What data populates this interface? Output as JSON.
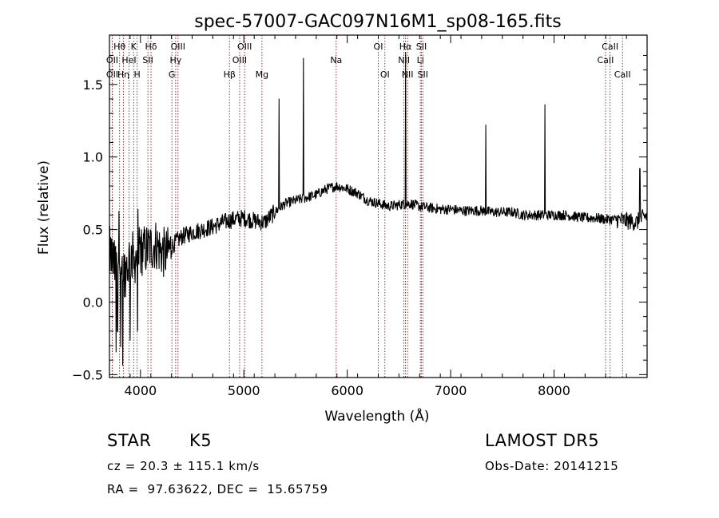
{
  "chart_data": {
    "type": "line",
    "title": "spec-57007-GAC097N16M1_sp08-165.fits",
    "xlabel": "Wavelength (Å)",
    "ylabel": "Flux (relative)",
    "xlim": [
      3700,
      8900
    ],
    "ylim": [
      -0.52,
      1.84
    ],
    "xticks": [
      4000,
      5000,
      6000,
      7000,
      8000
    ],
    "xtick_labels": [
      "4000",
      "5000",
      "6000",
      "7000",
      "8000"
    ],
    "yticks": [
      -0.5,
      0.0,
      0.5,
      1.0,
      1.5
    ],
    "ytick_labels": [
      "−0.5",
      "0.0",
      "0.5",
      "1.0",
      "1.5"
    ],
    "grid": false,
    "series": [
      {
        "x": [
          3700,
          3750,
          3800,
          3850,
          3900,
          3950,
          4000,
          4050,
          4100,
          4150,
          4200,
          4250,
          4300,
          4350,
          4400,
          4500,
          4600,
          4700,
          4800,
          4900,
          5000,
          5100,
          5200,
          5300,
          5400,
          5500,
          5600,
          5700,
          5800,
          5900,
          6000,
          6100,
          6200,
          6300,
          6400,
          6500,
          6600,
          6700,
          6800,
          6900,
          7000,
          7100,
          7200,
          7300,
          7400,
          7500,
          7600,
          7700,
          7800,
          7900,
          8000,
          8100,
          8200,
          8300,
          8400,
          8500,
          8600,
          8700,
          8800,
          8900
        ],
        "y": [
          0.35,
          0.25,
          0.3,
          0.2,
          0.32,
          0.3,
          0.35,
          0.36,
          0.38,
          0.4,
          0.35,
          0.33,
          0.38,
          0.42,
          0.45,
          0.48,
          0.5,
          0.52,
          0.55,
          0.57,
          0.58,
          0.56,
          0.55,
          0.62,
          0.68,
          0.7,
          0.72,
          0.74,
          0.78,
          0.8,
          0.78,
          0.75,
          0.7,
          0.68,
          0.66,
          0.67,
          0.68,
          0.66,
          0.65,
          0.64,
          0.64,
          0.63,
          0.63,
          0.63,
          0.62,
          0.62,
          0.62,
          0.6,
          0.6,
          0.6,
          0.6,
          0.6,
          0.59,
          0.58,
          0.58,
          0.57,
          0.57,
          0.56,
          0.55,
          0.6
        ]
      }
    ],
    "emission_peaks": [
      {
        "x": 5340,
        "y": 1.4
      },
      {
        "x": 5577,
        "y": 1.68
      },
      {
        "x": 6563,
        "y": 1.72
      },
      {
        "x": 7340,
        "y": 1.22
      },
      {
        "x": 7913,
        "y": 1.36
      },
      {
        "x": 8830,
        "y": 0.92
      }
    ],
    "line_markers": [
      {
        "x": 3798,
        "label": "Hθ",
        "row": 0
      },
      {
        "x": 3727,
        "label": "OII",
        "row": 1
      },
      {
        "x": 3727,
        "label": "OII",
        "row": 2
      },
      {
        "x": 3835,
        "label": "Hη",
        "row": 2
      },
      {
        "x": 3889,
        "label": "HeI",
        "row": 1
      },
      {
        "x": 3934,
        "label": "K",
        "row": 0
      },
      {
        "x": 3968,
        "label": "H",
        "row": 2
      },
      {
        "x": 4102,
        "label": "Hδ",
        "row": 0
      },
      {
        "x": 4072,
        "label": "SII",
        "row": 1
      },
      {
        "x": 4340,
        "label": "Hγ",
        "row": 1
      },
      {
        "x": 4304,
        "label": "G",
        "row": 2
      },
      {
        "x": 4363,
        "label": "OIII",
        "row": 0
      },
      {
        "x": 4861,
        "label": "Hβ",
        "row": 2
      },
      {
        "x": 4959,
        "label": "OIII",
        "row": 1
      },
      {
        "x": 5007,
        "label": "OIII",
        "row": 0
      },
      {
        "x": 5175,
        "label": "Mg",
        "row": 2
      },
      {
        "x": 5893,
        "label": "Na",
        "row": 1
      },
      {
        "x": 6300,
        "label": "OI",
        "row": 0
      },
      {
        "x": 6364,
        "label": "OI",
        "row": 2
      },
      {
        "x": 6548,
        "label": "NII",
        "row": 1
      },
      {
        "x": 6563,
        "label": "Hα",
        "row": 0
      },
      {
        "x": 6583,
        "label": "NII",
        "row": 2
      },
      {
        "x": 6707,
        "label": "Li",
        "row": 1
      },
      {
        "x": 6717,
        "label": "SII",
        "row": 0
      },
      {
        "x": 6731,
        "label": "SII",
        "row": 2
      },
      {
        "x": 8498,
        "label": "CaII",
        "row": 1
      },
      {
        "x": 8542,
        "label": "CaII",
        "row": 0
      },
      {
        "x": 8662,
        "label": "CaII",
        "row": 2
      }
    ],
    "colors": {
      "spectrum": "#000000",
      "markers": "#a0161a",
      "axes": "#000000"
    }
  },
  "info": {
    "object_class": "STAR",
    "subclass": "K5",
    "survey": "LAMOST DR5",
    "redshift_line": "cz = 20.3 ± 115.1 km/s",
    "obs_date_line": "Obs-Date: 20141215",
    "coords_line": "RA =  97.63622, DEC =  15.65759"
  }
}
